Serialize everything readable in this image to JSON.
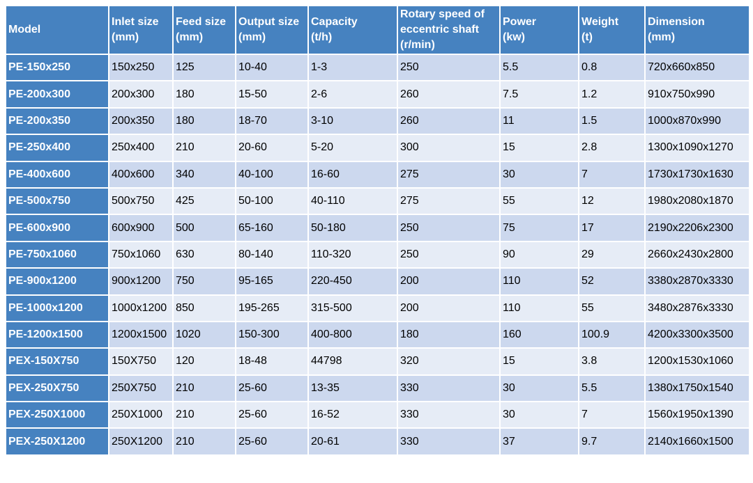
{
  "table": {
    "header": [
      [
        "Model"
      ],
      [
        "Inlet size",
        "(mm)"
      ],
      [
        "Feed size",
        "(mm)"
      ],
      [
        "Output size",
        "(mm)"
      ],
      [
        "Capacity",
        "(t/h)"
      ],
      [
        "Rotary speed of",
        "eccentric shaft",
        "(r/min)"
      ],
      [
        "Power",
        "(kw)"
      ],
      [
        "Weight",
        "(t)"
      ],
      [
        "Dimension",
        "(mm)"
      ]
    ],
    "rows": [
      [
        "PE-150x250",
        "150x250",
        "125",
        "10-40",
        "1-3",
        "250",
        "5.5",
        "0.8",
        "720x660x850"
      ],
      [
        "PE-200x300",
        "200x300",
        "180",
        "15-50",
        "2-6",
        "260",
        "7.5",
        "1.2",
        "910x750x990"
      ],
      [
        "PE-200x350",
        "200x350",
        "180",
        "18-70",
        "3-10",
        "260",
        "11",
        "1.5",
        "1000x870x990"
      ],
      [
        "PE-250x400",
        "250x400",
        "210",
        "20-60",
        "5-20",
        "300",
        "15",
        "2.8",
        "1300x1090x1270"
      ],
      [
        "PE-400x600",
        "400x600",
        "340",
        "40-100",
        "16-60",
        "275",
        "30",
        "7",
        "1730x1730x1630"
      ],
      [
        "PE-500x750",
        "500x750",
        "425",
        "50-100",
        "40-110",
        "275",
        "55",
        "12",
        "1980x2080x1870"
      ],
      [
        "PE-600x900",
        "600x900",
        "500",
        "65-160",
        "50-180",
        "250",
        "75",
        "17",
        "2190x2206x2300"
      ],
      [
        "PE-750x1060",
        "750x1060",
        "630",
        "80-140",
        "110-320",
        "250",
        "90",
        "29",
        "2660x2430x2800"
      ],
      [
        "PE-900x1200",
        "900x1200",
        "750",
        "95-165",
        "220-450",
        "200",
        "110",
        "52",
        "3380x2870x3330"
      ],
      [
        "PE-1000x1200",
        "1000x1200",
        "850",
        "195-265",
        "315-500",
        "200",
        "110",
        "55",
        "3480x2876x3330"
      ],
      [
        "PE-1200x1500",
        "1200x1500",
        "1020",
        "150-300",
        "400-800",
        "180",
        "160",
        "100.9",
        "4200x3300x3500"
      ],
      [
        "PEX-150X750",
        "150X750",
        "120",
        "18-48",
        "44798",
        "320",
        "15",
        "3.8",
        "1200x1530x1060"
      ],
      [
        "PEX-250X750",
        "250X750",
        "210",
        "25-60",
        "13-35",
        "330",
        "30",
        "5.5",
        "1380x1750x1540"
      ],
      [
        "PEX-250X1000",
        "250X1000",
        "210",
        "25-60",
        "16-52",
        "330",
        "30",
        "7",
        "1560x1950x1390"
      ],
      [
        "PEX-250X1200",
        "250X1200",
        "210",
        "25-60",
        "20-61",
        "330",
        "37",
        "9.7",
        "2140x1660x1500"
      ]
    ]
  }
}
